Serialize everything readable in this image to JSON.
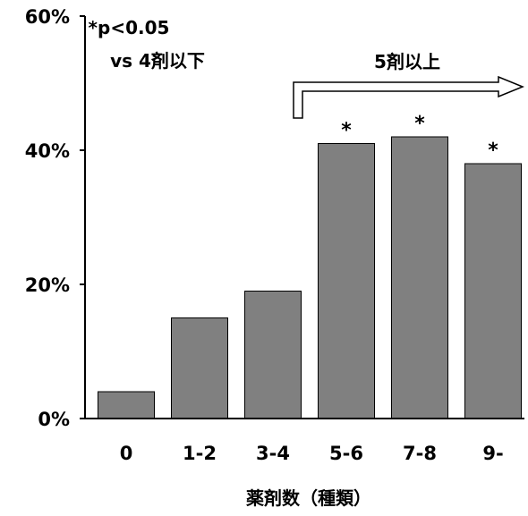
{
  "chart_data": {
    "type": "bar",
    "categories": [
      "0",
      "1-2",
      "3-4",
      "5-6",
      "7-8",
      "9-"
    ],
    "values": [
      4,
      15,
      19,
      41,
      42,
      38
    ],
    "significant": [
      false,
      false,
      false,
      true,
      true,
      true
    ],
    "significance_marker": "*",
    "ylim": [
      0,
      60
    ],
    "yticks": [
      0,
      20,
      40,
      60
    ],
    "ytick_labels": [
      "0%",
      "20%",
      "40%",
      "60%"
    ],
    "xlabel": "薬剤数（種類）",
    "ylabel": "",
    "title": "",
    "grid": false,
    "bar_color": "#808080",
    "bar_edge_color": "#000000",
    "annotations": {
      "significance_line1": "*p<0.05",
      "significance_line2": "vs 4剤以下",
      "group_label": "5剤以上"
    }
  }
}
